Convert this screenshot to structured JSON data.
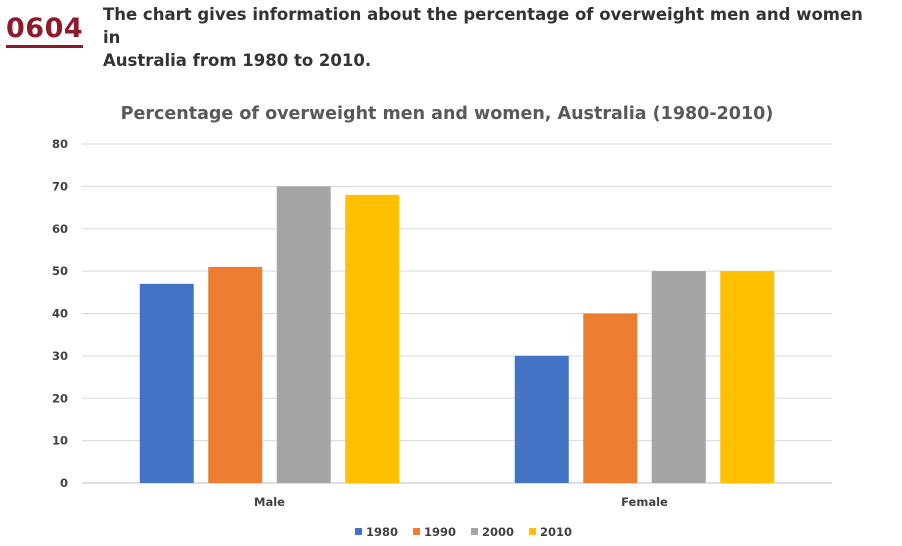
{
  "header": {
    "code": "0604",
    "task_line1": "The chart gives information about the percentage of overweight men and women in",
    "task_line2": "Australia from 1980 to 2010."
  },
  "chart_data": {
    "type": "bar",
    "title": "Percentage of overweight men and women, Australia (1980-2010)",
    "categories": [
      "Male",
      "Female"
    ],
    "series": [
      {
        "name": "1980",
        "color": "#4472c4",
        "values": [
          47,
          30
        ]
      },
      {
        "name": "1990",
        "color": "#ed7d31",
        "values": [
          51,
          40
        ]
      },
      {
        "name": "2000",
        "color": "#a5a5a5",
        "values": [
          70,
          50
        ]
      },
      {
        "name": "2010",
        "color": "#ffc000",
        "values": [
          68,
          50
        ]
      }
    ],
    "ylim": [
      0,
      80
    ],
    "yticks": [
      "0",
      "10",
      "20",
      "30",
      "40",
      "50",
      "60",
      "70",
      "80"
    ],
    "xlabel": "",
    "ylabel": "",
    "grid": true,
    "legend": "bottom"
  }
}
